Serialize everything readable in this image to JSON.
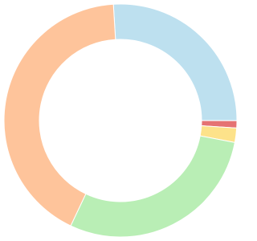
{
  "chart_data": {
    "type": "donut",
    "values": [
      26,
      1,
      2,
      29,
      42
    ],
    "colors": [
      "#bde0ef",
      "#e57373",
      "#fde28a",
      "#b9eeb5",
      "#fec49b"
    ]
  }
}
